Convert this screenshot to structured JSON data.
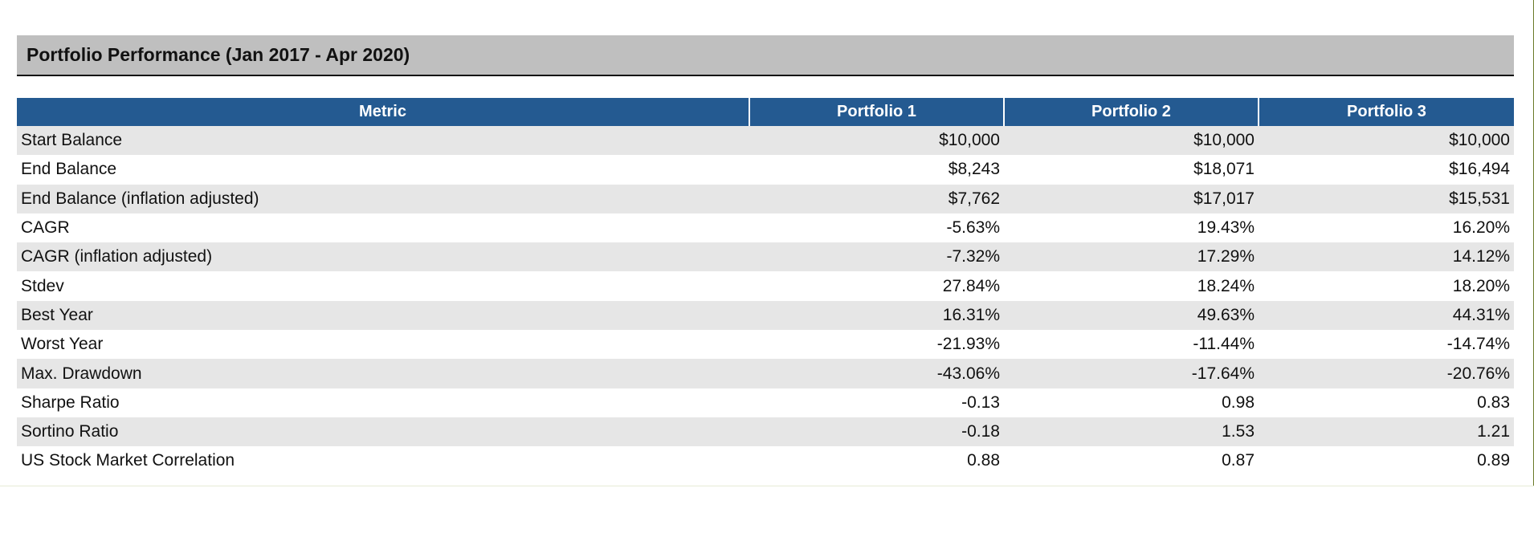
{
  "title": "Portfolio Performance (Jan 2017 - Apr 2020)",
  "columns": [
    "Metric",
    "Portfolio 1",
    "Portfolio 2",
    "Portfolio 3"
  ],
  "rows": [
    {
      "metric": "Start Balance",
      "p1": "$10,000",
      "p2": "$10,000",
      "p3": "$10,000"
    },
    {
      "metric": "End Balance",
      "p1": "$8,243",
      "p2": "$18,071",
      "p3": "$16,494"
    },
    {
      "metric": "End Balance (inflation adjusted)",
      "p1": "$7,762",
      "p2": "$17,017",
      "p3": "$15,531"
    },
    {
      "metric": "CAGR",
      "p1": "-5.63%",
      "p2": "19.43%",
      "p3": "16.20%"
    },
    {
      "metric": "CAGR (inflation adjusted)",
      "p1": "-7.32%",
      "p2": "17.29%",
      "p3": "14.12%"
    },
    {
      "metric": "Stdev",
      "p1": "27.84%",
      "p2": "18.24%",
      "p3": "18.20%"
    },
    {
      "metric": "Best Year",
      "p1": "16.31%",
      "p2": "49.63%",
      "p3": "44.31%"
    },
    {
      "metric": "Worst Year",
      "p1": "-21.93%",
      "p2": "-11.44%",
      "p3": "-14.74%"
    },
    {
      "metric": "Max. Drawdown",
      "p1": "-43.06%",
      "p2": "-17.64%",
      "p3": "-20.76%"
    },
    {
      "metric": "Sharpe Ratio",
      "p1": "-0.13",
      "p2": "0.98",
      "p3": "0.83"
    },
    {
      "metric": "Sortino Ratio",
      "p1": "-0.18",
      "p2": "1.53",
      "p3": "1.21"
    },
    {
      "metric": "US Stock Market Correlation",
      "p1": "0.88",
      "p2": "0.87",
      "p3": "0.89"
    }
  ],
  "colors": {
    "header_bg": "#245a91",
    "title_bar_bg": "#bfbfbf",
    "row_stripe": "#e6e6e6"
  }
}
